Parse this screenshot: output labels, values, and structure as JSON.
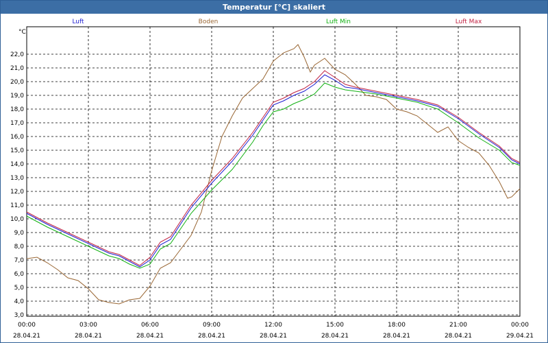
{
  "window": {
    "title": "Temperatur [°C] skaliert"
  },
  "chart_data": {
    "type": "line",
    "title": "Temperatur [°C] skaliert",
    "ylabel": "°C",
    "ylim": [
      3.0,
      23.0
    ],
    "xlim": [
      0,
      24
    ],
    "grid": true,
    "legend_position": "top",
    "y_ticks": [
      "3,0",
      "4,0",
      "5,0",
      "6,0",
      "7,0",
      "8,0",
      "9,0",
      "10,0",
      "11,0",
      "12,0",
      "13,0",
      "14,0",
      "15,0",
      "16,0",
      "17,0",
      "18,0",
      "19,0",
      "20,0",
      "21,0",
      "22,0"
    ],
    "x_ticks": [
      {
        "time": "00:00",
        "date": "28.04.21"
      },
      {
        "time": "03:00",
        "date": "28.04.21"
      },
      {
        "time": "06:00",
        "date": "28.04.21"
      },
      {
        "time": "09:00",
        "date": "28.04.21"
      },
      {
        "time": "12:00",
        "date": "28.04.21"
      },
      {
        "time": "15:00",
        "date": "28.04.21"
      },
      {
        "time": "18:00",
        "date": "28.04.21"
      },
      {
        "time": "21:00",
        "date": "28.04.21"
      },
      {
        "time": "00:00",
        "date": "29.04.21"
      }
    ],
    "series": [
      {
        "name": "Luft",
        "color": "#1c1cd0",
        "points": [
          [
            0,
            10.4
          ],
          [
            1,
            9.6
          ],
          [
            2,
            8.9
          ],
          [
            3,
            8.2
          ],
          [
            4,
            7.5
          ],
          [
            4.5,
            7.3
          ],
          [
            5,
            6.9
          ],
          [
            5.5,
            6.5
          ],
          [
            6,
            7.0
          ],
          [
            6.5,
            8.1
          ],
          [
            7,
            8.5
          ],
          [
            8,
            10.8
          ],
          [
            9,
            12.6
          ],
          [
            10,
            14.2
          ],
          [
            11,
            16.1
          ],
          [
            11.5,
            17.2
          ],
          [
            12,
            18.3
          ],
          [
            12.5,
            18.6
          ],
          [
            13,
            19.0
          ],
          [
            13.5,
            19.3
          ],
          [
            14,
            19.8
          ],
          [
            14.5,
            20.5
          ],
          [
            15,
            20.1
          ],
          [
            15.5,
            19.6
          ],
          [
            16,
            19.5
          ],
          [
            17,
            19.2
          ],
          [
            18,
            18.9
          ],
          [
            19,
            18.6
          ],
          [
            20,
            18.2
          ],
          [
            21,
            17.3
          ],
          [
            22,
            16.2
          ],
          [
            23,
            15.2
          ],
          [
            23.6,
            14.3
          ],
          [
            24,
            14.0
          ]
        ]
      },
      {
        "name": "Boden",
        "color": "#996633",
        "points": [
          [
            0,
            7.1
          ],
          [
            0.5,
            7.2
          ],
          [
            1,
            6.8
          ],
          [
            1.5,
            6.3
          ],
          [
            2,
            5.7
          ],
          [
            2.5,
            5.5
          ],
          [
            3,
            4.9
          ],
          [
            3.5,
            4.1
          ],
          [
            4,
            3.9
          ],
          [
            4.5,
            3.8
          ],
          [
            5,
            4.1
          ],
          [
            5.5,
            4.2
          ],
          [
            6,
            5.1
          ],
          [
            6.5,
            6.4
          ],
          [
            7,
            6.8
          ],
          [
            7.5,
            7.8
          ],
          [
            8,
            8.8
          ],
          [
            8.5,
            10.5
          ],
          [
            9,
            13.5
          ],
          [
            9.5,
            16.0
          ],
          [
            10,
            17.5
          ],
          [
            10.5,
            18.8
          ],
          [
            11,
            19.5
          ],
          [
            11.5,
            20.2
          ],
          [
            12,
            21.5
          ],
          [
            12.5,
            22.1
          ],
          [
            13,
            22.4
          ],
          [
            13.2,
            22.7
          ],
          [
            13.5,
            21.8
          ],
          [
            13.8,
            20.7
          ],
          [
            14,
            21.2
          ],
          [
            14.5,
            21.7
          ],
          [
            15,
            20.9
          ],
          [
            15.5,
            20.5
          ],
          [
            16,
            19.8
          ],
          [
            16.5,
            19.0
          ],
          [
            17,
            18.9
          ],
          [
            17.5,
            18.7
          ],
          [
            18,
            18.0
          ],
          [
            18.5,
            17.8
          ],
          [
            19,
            17.5
          ],
          [
            19.5,
            16.9
          ],
          [
            20,
            16.3
          ],
          [
            20.5,
            16.7
          ],
          [
            21,
            15.7
          ],
          [
            21.5,
            15.2
          ],
          [
            22,
            14.8
          ],
          [
            22.5,
            13.9
          ],
          [
            23,
            12.7
          ],
          [
            23.4,
            11.5
          ],
          [
            23.6,
            11.6
          ],
          [
            24,
            12.2
          ]
        ]
      },
      {
        "name": "Luft Min",
        "color": "#10b010",
        "points": [
          [
            0,
            10.2
          ],
          [
            1,
            9.4
          ],
          [
            2,
            8.7
          ],
          [
            3,
            8.0
          ],
          [
            4,
            7.3
          ],
          [
            4.5,
            7.1
          ],
          [
            5,
            6.7
          ],
          [
            5.5,
            6.4
          ],
          [
            6,
            6.7
          ],
          [
            6.5,
            7.8
          ],
          [
            7,
            8.2
          ],
          [
            8,
            10.4
          ],
          [
            9,
            12.1
          ],
          [
            10,
            13.6
          ],
          [
            11,
            15.6
          ],
          [
            11.5,
            16.8
          ],
          [
            12,
            17.8
          ],
          [
            12.5,
            18.0
          ],
          [
            13,
            18.4
          ],
          [
            13.5,
            18.7
          ],
          [
            14,
            19.1
          ],
          [
            14.5,
            19.9
          ],
          [
            15,
            19.6
          ],
          [
            15.5,
            19.4
          ],
          [
            16,
            19.3
          ],
          [
            17,
            19.1
          ],
          [
            18,
            18.8
          ],
          [
            19,
            18.5
          ],
          [
            20,
            18.0
          ],
          [
            21,
            17.0
          ],
          [
            22,
            15.9
          ],
          [
            23,
            15.0
          ],
          [
            23.6,
            14.1
          ],
          [
            24,
            13.9
          ]
        ]
      },
      {
        "name": "Luft Max",
        "color": "#c02040",
        "points": [
          [
            0,
            10.5
          ],
          [
            1,
            9.7
          ],
          [
            2,
            9.0
          ],
          [
            3,
            8.3
          ],
          [
            4,
            7.6
          ],
          [
            4.5,
            7.4
          ],
          [
            5,
            7.0
          ],
          [
            5.5,
            6.6
          ],
          [
            6,
            7.2
          ],
          [
            6.5,
            8.3
          ],
          [
            7,
            8.7
          ],
          [
            8,
            11.0
          ],
          [
            9,
            12.8
          ],
          [
            10,
            14.4
          ],
          [
            11,
            16.3
          ],
          [
            11.5,
            17.4
          ],
          [
            12,
            18.5
          ],
          [
            12.5,
            18.8
          ],
          [
            13,
            19.2
          ],
          [
            13.5,
            19.5
          ],
          [
            14,
            20.0
          ],
          [
            14.5,
            20.8
          ],
          [
            15,
            20.3
          ],
          [
            15.5,
            19.8
          ],
          [
            16,
            19.6
          ],
          [
            17,
            19.3
          ],
          [
            18,
            19.0
          ],
          [
            19,
            18.7
          ],
          [
            20,
            18.3
          ],
          [
            21,
            17.4
          ],
          [
            22,
            16.3
          ],
          [
            23,
            15.3
          ],
          [
            23.6,
            14.4
          ],
          [
            24,
            14.1
          ]
        ]
      }
    ]
  }
}
